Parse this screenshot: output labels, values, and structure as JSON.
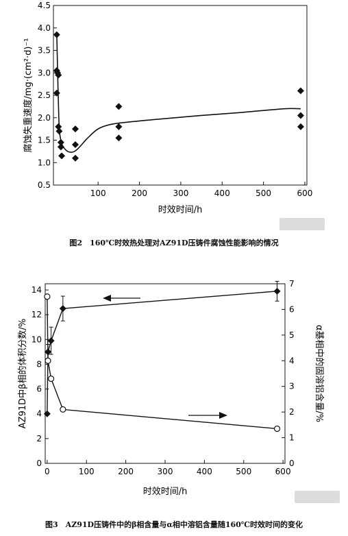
{
  "chart_data": [
    {
      "type": "scatter",
      "xlabel": "时效时间/h",
      "ylabel": "腐蚀失重速度/mg·(cm²·d)⁻¹",
      "xlim": [
        -8,
        605
      ],
      "ylim": [
        0.5,
        4.5
      ],
      "xticks": [
        "100",
        "200",
        "300",
        "400",
        "500",
        "600"
      ],
      "xtick_values": [
        100,
        200,
        300,
        400,
        500,
        600
      ],
      "yticks": [
        "0.5",
        "1.0",
        "1.5",
        "2.0",
        "2.5",
        "3.0",
        "3.5",
        "4.0",
        "4.5"
      ],
      "ytick_values": [
        0.5,
        1.0,
        1.5,
        2.0,
        2.5,
        3.0,
        3.5,
        4.0,
        4.5
      ],
      "points": [
        {
          "x": 0,
          "y": 3.85
        },
        {
          "x": 0,
          "y": 3.05
        },
        {
          "x": 0,
          "y": 2.55
        },
        {
          "x": 2,
          "y": 3.0
        },
        {
          "x": 4,
          "y": 2.95
        },
        {
          "x": 4,
          "y": 1.8
        },
        {
          "x": 6,
          "y": 1.7
        },
        {
          "x": 10,
          "y": 1.45
        },
        {
          "x": 10,
          "y": 1.35
        },
        {
          "x": 12,
          "y": 1.15
        },
        {
          "x": 45,
          "y": 1.75
        },
        {
          "x": 45,
          "y": 1.4
        },
        {
          "x": 45,
          "y": 1.1
        },
        {
          "x": 150,
          "y": 2.25
        },
        {
          "x": 150,
          "y": 1.8
        },
        {
          "x": 150,
          "y": 1.55
        },
        {
          "x": 590,
          "y": 2.6
        },
        {
          "x": 590,
          "y": 2.05
        },
        {
          "x": 590,
          "y": 1.8
        }
      ],
      "trend": {
        "x": [
          0,
          5,
          10,
          20,
          35,
          50,
          75,
          100,
          130,
          170,
          250,
          350,
          450,
          550,
          590
        ],
        "y": [
          3.9,
          2.0,
          1.5,
          1.3,
          1.23,
          1.3,
          1.55,
          1.75,
          1.85,
          1.9,
          1.97,
          2.05,
          2.12,
          2.2,
          2.2
        ]
      }
    },
    {
      "type": "line",
      "xlabel": "时效时间/h",
      "ylabel_left": "AZ91D中β相的体积分数/%",
      "ylabel_right": "α基相中的固溶铝含量/%",
      "xlim": [
        -5,
        605
      ],
      "ylim_left": [
        0,
        14.5
      ],
      "ylim_right": [
        0,
        7
      ],
      "xticks": [
        "0",
        "100",
        "200",
        "300",
        "400",
        "500",
        "600"
      ],
      "xtick_values": [
        0,
        100,
        200,
        300,
        400,
        500,
        600
      ],
      "yticks_left": [
        "0",
        "2",
        "4",
        "6",
        "8",
        "10",
        "12",
        "14"
      ],
      "ytick_values_left": [
        0,
        2,
        4,
        6,
        8,
        10,
        12,
        14
      ],
      "yticks_right": [
        "0",
        "1",
        "2",
        "3",
        "4",
        "5",
        "6",
        "7"
      ],
      "ytick_values_right": [
        0,
        1,
        2,
        3,
        4,
        5,
        6,
        7
      ],
      "series": [
        {
          "axis": "left",
          "marker": "filled-diamond",
          "x": [
            0,
            2,
            10,
            40,
            585
          ],
          "y": [
            4.0,
            9.0,
            9.9,
            12.5,
            13.9
          ],
          "err": [
            0,
            0.6,
            1.1,
            1.0,
            0.8
          ]
        },
        {
          "axis": "right",
          "marker": "open-circle",
          "x": [
            0,
            2,
            10,
            40,
            585
          ],
          "y": [
            6.5,
            4.0,
            3.3,
            2.1,
            1.35
          ]
        }
      ]
    }
  ],
  "captions": {
    "fig2": "图2　160℃时效热处理对AZ91D压铸件腐蚀性能影响的情况",
    "fig3": "图3　AZ91D压铸件中的β相含量与α相中溶铝含量随160℃时效时间的变化"
  },
  "colors": {
    "ink": "#111111",
    "background": "#ffffff",
    "watermark": "#dcdcdc"
  }
}
